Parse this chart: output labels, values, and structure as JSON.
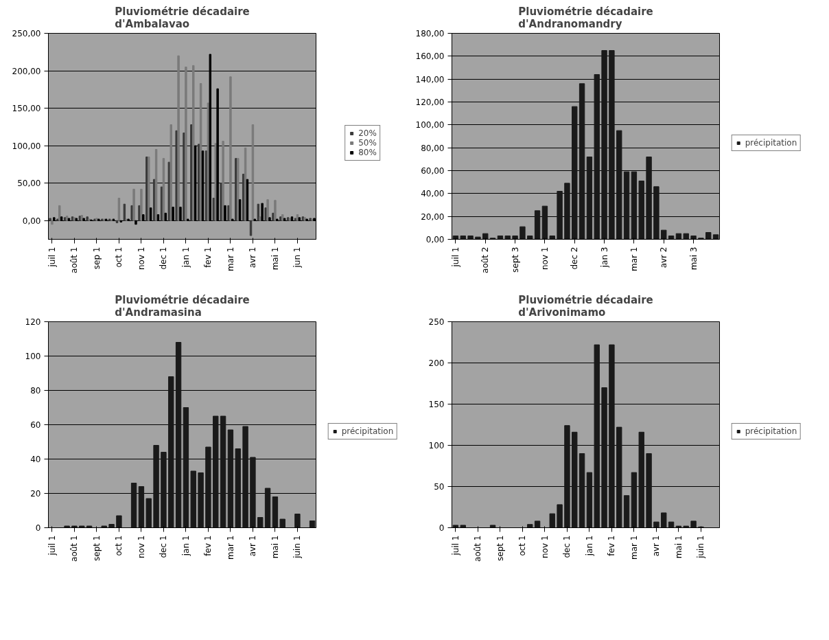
{
  "chart_data": [
    {
      "type": "bar",
      "title": "Pluviométrie décadaire\nd'Ambalavao",
      "categories": [
        "juil 1",
        null,
        null,
        "août 1",
        null,
        null,
        "sep 1",
        null,
        null,
        "oct 1",
        null,
        null,
        "nov 1",
        null,
        null,
        "dec 1",
        null,
        null,
        "jan 1",
        null,
        null,
        "fev 1",
        null,
        null,
        "mar 1",
        null,
        null,
        "avr 1",
        null,
        null,
        "mai 1",
        null,
        null,
        "jun 1",
        null,
        null
      ],
      "series": [
        {
          "name": "20%",
          "color": "#3a3a3a",
          "values": [
            3,
            2,
            4,
            5,
            6,
            5,
            2,
            2,
            2,
            -3,
            22,
            20,
            20,
            85,
            55,
            45,
            78,
            120,
            117,
            128,
            102,
            93,
            30,
            50,
            20,
            83,
            62,
            -20,
            22,
            17,
            10,
            5,
            4,
            3,
            5,
            3
          ]
        },
        {
          "name": "50%",
          "color": "#7a7a7a",
          "values": [
            -5,
            20,
            6,
            4,
            7,
            2,
            3,
            2,
            1,
            30,
            2,
            42,
            42,
            85,
            95,
            83,
            128,
            220,
            205,
            207,
            183,
            157,
            103,
            106,
            192,
            83,
            97,
            128,
            5,
            28,
            27,
            8,
            3,
            8,
            4,
            2
          ]
        },
        {
          "name": "80%",
          "color": "#000000",
          "values": [
            4,
            5,
            3,
            3,
            3,
            1,
            2,
            2,
            2,
            -2,
            2,
            -5,
            8,
            17,
            8,
            10,
            18,
            18,
            2,
            100,
            93,
            222,
            176,
            20,
            2,
            28,
            55,
            2,
            23,
            4,
            2,
            3,
            5,
            4,
            2,
            3
          ]
        }
      ],
      "ylim": [
        -25,
        250
      ],
      "yticks": [
        {
          "value": 0,
          "label": "0,00"
        },
        {
          "value": 50,
          "label": "50,00"
        },
        {
          "value": 100,
          "label": "100,00"
        },
        {
          "value": 150,
          "label": "150,00"
        },
        {
          "value": 200,
          "label": "200,00"
        },
        {
          "value": 250,
          "label": "250,00"
        }
      ],
      "grid": "y",
      "legend": "right"
    },
    {
      "type": "bar",
      "title": "Pluviométrie décadaire\nd'Andranomandry",
      "categories": [
        "juil 1",
        null,
        null,
        null,
        "août 2",
        null,
        null,
        null,
        "sept 3",
        null,
        null,
        null,
        "nov 1",
        null,
        null,
        null,
        "dec 2",
        null,
        null,
        null,
        "jan 3",
        null,
        null,
        null,
        "mar 1",
        null,
        null,
        null,
        "avr 2",
        null,
        null,
        null,
        "mai 3",
        null,
        null,
        null
      ],
      "series": [
        {
          "name": "précipitation",
          "color": "#1a1a1a",
          "values": [
            3,
            3,
            3,
            2,
            5,
            1,
            3,
            3,
            3,
            11,
            3,
            25,
            29,
            3,
            42,
            49,
            116,
            136,
            72,
            144,
            165,
            165,
            95,
            59,
            59,
            51,
            72,
            46,
            8,
            3,
            5,
            5,
            3,
            1,
            6,
            4
          ]
        }
      ],
      "ylim": [
        0,
        180
      ],
      "yticks": [
        {
          "value": 0,
          "label": "0,00"
        },
        {
          "value": 20,
          "label": "20,00"
        },
        {
          "value": 40,
          "label": "40,00"
        },
        {
          "value": 60,
          "label": "60,00"
        },
        {
          "value": 80,
          "label": "80,00"
        },
        {
          "value": 100,
          "label": "100,00"
        },
        {
          "value": 120,
          "label": "120,00"
        },
        {
          "value": 140,
          "label": "140,00"
        },
        {
          "value": 160,
          "label": "160,00"
        },
        {
          "value": 180,
          "label": "180,00"
        }
      ],
      "grid": "y",
      "legend": "right"
    },
    {
      "type": "bar",
      "title": "Pluviométrie décadaire\nd'Andramasina",
      "categories": [
        "juil 1",
        null,
        null,
        "août 1",
        null,
        null,
        "sept 1",
        null,
        null,
        "oct 1",
        null,
        null,
        "nov 1",
        null,
        null,
        "dec 1",
        null,
        null,
        "jan 1",
        null,
        null,
        "fev 1",
        null,
        null,
        "mar 1",
        null,
        null,
        "avr 1",
        null,
        null,
        "mai 1",
        null,
        null,
        "juin 1",
        null,
        null
      ],
      "series": [
        {
          "name": "précipitation",
          "color": "#1a1a1a",
          "values": [
            0,
            0,
            1,
            1,
            1,
            1,
            0,
            1,
            2,
            7,
            0,
            26,
            24,
            17,
            48,
            44,
            88,
            108,
            70,
            33,
            32,
            47,
            65,
            65,
            57,
            46,
            59,
            41,
            6,
            23,
            18,
            5,
            0,
            8,
            0,
            4
          ]
        }
      ],
      "ylim": [
        0,
        120
      ],
      "yticks": [
        0,
        20,
        40,
        60,
        80,
        100,
        120
      ],
      "grid": "y",
      "legend": "right"
    },
    {
      "type": "bar",
      "title": "Pluviométrie décadaire\nd'Arivonimamo",
      "categories": [
        "juil 1",
        null,
        null,
        "août 1",
        null,
        null,
        "sept 1",
        null,
        null,
        "oct 1",
        null,
        null,
        "nov 1",
        null,
        null,
        "dec 1",
        null,
        null,
        "jan 1",
        null,
        null,
        "fev 1",
        null,
        null,
        "mar 1",
        null,
        null,
        "avr 1",
        null,
        null,
        "mai 1",
        null,
        null,
        "juin 1",
        null,
        null
      ],
      "series": [
        {
          "name": "précipitation",
          "color": "#1a1a1a",
          "values": [
            3,
            3,
            0,
            0,
            0,
            3,
            0,
            0,
            0,
            0,
            4,
            8,
            0,
            17,
            28,
            124,
            116,
            90,
            67,
            222,
            170,
            222,
            122,
            39,
            67,
            116,
            90,
            7,
            18,
            7,
            2,
            2,
            8,
            1,
            0,
            0
          ]
        }
      ],
      "ylim": [
        0,
        250
      ],
      "yticks": [
        0,
        50,
        100,
        150,
        200,
        250
      ],
      "grid": "y",
      "legend": "right"
    }
  ]
}
